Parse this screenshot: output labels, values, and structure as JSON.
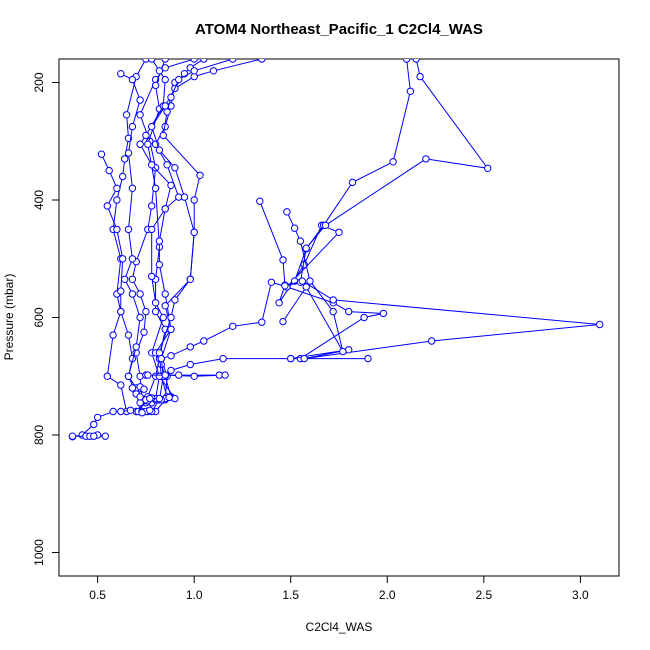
{
  "chart_data": {
    "type": "line",
    "title": "ATOM4 Northeast_Pacific_1 C2Cl4_WAS",
    "xlabel": "C2Cl4_WAS",
    "ylabel": "Pressure (mbar)",
    "xlim": [
      0.3,
      3.2
    ],
    "ylim": [
      1040,
      160
    ],
    "y_reversed": true,
    "xticks": [
      0.5,
      1.0,
      1.5,
      2.0,
      2.5,
      3.0
    ],
    "xtick_labels": [
      "0.5",
      "1.0",
      "1.5",
      "2.0",
      "2.5",
      "3.0"
    ],
    "yticks": [
      200,
      400,
      600,
      800,
      1000
    ],
    "ytick_labels": [
      "200",
      "400",
      "600",
      "800",
      "1000"
    ],
    "grid": false,
    "colors": {
      "series": "#0000ff",
      "axes": "#000000"
    },
    "series": [
      {
        "values": [
          [
            1.0,
            160
          ],
          [
            0.85,
            175
          ],
          [
            0.8,
            195
          ],
          [
            0.72,
            255
          ],
          [
            0.77,
            300
          ],
          [
            0.8,
            345
          ],
          [
            0.78,
            410
          ],
          [
            0.76,
            450
          ],
          [
            0.7,
            505
          ],
          [
            0.68,
            535
          ],
          [
            0.72,
            560
          ],
          [
            0.75,
            590
          ],
          [
            0.74,
            625
          ],
          [
            0.7,
            660
          ],
          [
            0.72,
            700
          ],
          [
            0.73,
            740
          ],
          [
            0.72,
            760
          ]
        ]
      },
      {
        "values": [
          [
            0.75,
            160
          ],
          [
            0.7,
            190
          ],
          [
            0.65,
            255
          ],
          [
            0.66,
            295
          ],
          [
            0.64,
            330
          ],
          [
            0.63,
            360
          ],
          [
            0.6,
            400
          ],
          [
            0.58,
            450
          ],
          [
            0.62,
            500
          ],
          [
            0.6,
            560
          ],
          [
            0.62,
            590
          ],
          [
            0.58,
            630
          ],
          [
            0.55,
            700
          ],
          [
            0.62,
            715
          ],
          [
            0.65,
            760
          ],
          [
            0.58,
            760
          ],
          [
            0.5,
            770
          ],
          [
            0.48,
            782
          ],
          [
            0.42,
            800
          ],
          [
            0.37,
            803
          ]
        ]
      },
      {
        "values": [
          [
            0.85,
            160
          ],
          [
            0.8,
            205
          ],
          [
            0.82,
            245
          ],
          [
            0.76,
            305
          ],
          [
            0.8,
            380
          ],
          [
            0.82,
            480
          ],
          [
            0.8,
            535
          ],
          [
            0.8,
            590
          ],
          [
            0.85,
            620
          ],
          [
            0.82,
            670
          ],
          [
            0.8,
            700
          ],
          [
            0.76,
            735
          ],
          [
            0.75,
            745
          ],
          [
            0.7,
            760
          ]
        ]
      },
      {
        "values": [
          [
            0.78,
            160
          ],
          [
            0.82,
            180
          ],
          [
            0.85,
            195
          ],
          [
            0.84,
            240
          ],
          [
            0.75,
            290
          ],
          [
            0.72,
            305
          ],
          [
            0.78,
            340
          ],
          [
            0.88,
            375
          ],
          [
            0.85,
            415
          ],
          [
            0.82,
            470
          ],
          [
            0.82,
            510
          ],
          [
            0.85,
            560
          ],
          [
            0.88,
            620
          ],
          [
            0.83,
            670
          ],
          [
            0.86,
            700
          ],
          [
            0.85,
            740
          ],
          [
            0.8,
            760
          ]
        ]
      },
      {
        "values": [
          [
            0.52,
            322
          ],
          [
            0.56,
            350
          ],
          [
            0.6,
            380
          ],
          [
            0.55,
            410
          ],
          [
            0.6,
            450
          ],
          [
            0.63,
            500
          ],
          [
            0.62,
            555
          ],
          [
            0.62,
            590
          ],
          [
            0.66,
            630
          ],
          [
            0.68,
            670
          ],
          [
            0.66,
            700
          ],
          [
            0.7,
            730
          ],
          [
            0.74,
            742
          ],
          [
            0.72,
            760
          ]
        ]
      },
      {
        "values": [
          [
            0.62,
            185
          ],
          [
            0.68,
            195
          ],
          [
            0.72,
            230
          ],
          [
            0.68,
            275
          ],
          [
            0.66,
            320
          ],
          [
            0.68,
            380
          ],
          [
            0.66,
            450
          ],
          [
            0.68,
            500
          ],
          [
            0.64,
            535
          ],
          [
            0.68,
            560
          ],
          [
            0.72,
            600
          ],
          [
            0.7,
            650
          ],
          [
            0.66,
            700
          ],
          [
            0.7,
            720
          ],
          [
            0.72,
            760
          ]
        ]
      },
      {
        "values": [
          [
            1.05,
            160
          ],
          [
            0.98,
            175
          ],
          [
            0.95,
            185
          ],
          [
            0.9,
            200
          ],
          [
            0.88,
            240
          ],
          [
            0.85,
            275
          ],
          [
            0.8,
            305
          ],
          [
            0.86,
            340
          ],
          [
            0.92,
            395
          ],
          [
            0.85,
            415
          ],
          [
            0.78,
            450
          ],
          [
            0.78,
            530
          ],
          [
            0.8,
            575
          ],
          [
            0.84,
            600
          ],
          [
            0.78,
            660
          ],
          [
            0.82,
            700
          ],
          [
            0.8,
            738
          ],
          [
            0.76,
            760
          ]
        ]
      },
      {
        "values": [
          [
            1.35,
            160
          ],
          [
            1.1,
            180
          ],
          [
            1.0,
            190
          ],
          [
            0.9,
            210
          ],
          [
            0.85,
            240
          ],
          [
            0.78,
            275
          ],
          [
            0.82,
            315
          ],
          [
            0.9,
            345
          ],
          [
            0.95,
            395
          ],
          [
            1.0,
            455
          ],
          [
            0.98,
            535
          ],
          [
            0.85,
            580
          ],
          [
            0.88,
            620
          ],
          [
            0.8,
            660
          ],
          [
            0.83,
            680
          ],
          [
            0.85,
            700
          ],
          [
            0.88,
            735
          ],
          [
            0.82,
            740
          ],
          [
            0.78,
            745
          ]
        ]
      },
      {
        "values": [
          [
            1.2,
            160
          ],
          [
            1.0,
            180
          ],
          [
            0.92,
            195
          ],
          [
            0.88,
            225
          ],
          [
            0.86,
            250
          ],
          [
            0.84,
            290
          ],
          [
            1.03,
            358
          ],
          [
            1.0,
            400
          ],
          [
            1.0,
            455
          ],
          [
            0.98,
            535
          ],
          [
            0.9,
            570
          ],
          [
            0.88,
            600
          ],
          [
            0.82,
            660
          ],
          [
            0.83,
            700
          ],
          [
            0.86,
            735
          ],
          [
            0.8,
            740
          ]
        ]
      },
      {
        "values": [
          [
            1.34,
            402
          ],
          [
            1.46,
            502
          ],
          [
            1.47,
            545
          ],
          [
            1.44,
            575
          ],
          [
            1.57,
            510
          ],
          [
            1.66,
            443
          ],
          [
            1.75,
            455
          ],
          [
            1.48,
            548
          ],
          [
            1.4,
            540
          ],
          [
            1.35,
            608
          ],
          [
            1.2,
            615
          ],
          [
            1.05,
            640
          ],
          [
            0.98,
            650
          ],
          [
            0.88,
            665
          ],
          [
            0.83,
            670
          ],
          [
            0.84,
            700
          ],
          [
            0.82,
            740
          ],
          [
            0.78,
            760
          ]
        ]
      },
      {
        "values": [
          [
            2.1,
            160
          ],
          [
            2.12,
            215
          ],
          [
            2.03,
            335
          ],
          [
            1.82,
            370
          ],
          [
            1.67,
            443
          ],
          [
            1.58,
            483
          ],
          [
            1.52,
            538
          ],
          [
            1.48,
            548
          ],
          [
            1.72,
            575
          ],
          [
            1.8,
            590
          ],
          [
            1.98,
            593
          ],
          [
            1.88,
            600
          ],
          [
            1.55,
            670
          ],
          [
            1.5,
            670
          ],
          [
            1.9,
            670
          ]
        ]
      },
      {
        "values": [
          [
            2.15,
            160
          ],
          [
            2.17,
            190
          ],
          [
            2.52,
            346
          ],
          [
            2.2,
            330
          ],
          [
            1.68,
            443
          ],
          [
            1.58,
            482
          ],
          [
            1.55,
            540
          ],
          [
            1.47,
            546
          ],
          [
            1.56,
            538
          ],
          [
            1.72,
            570
          ],
          [
            3.1,
            612
          ],
          [
            2.23,
            640
          ],
          [
            1.57,
            670
          ],
          [
            1.8,
            655
          ],
          [
            1.5,
            670
          ],
          [
            1.15,
            670
          ],
          [
            0.98,
            680
          ],
          [
            0.88,
            690
          ],
          [
            0.82,
            700
          ],
          [
            0.9,
            738
          ],
          [
            0.84,
            740
          ]
        ]
      },
      {
        "values": [
          [
            1.48,
            420
          ],
          [
            1.52,
            448
          ],
          [
            1.55,
            470
          ],
          [
            1.6,
            538
          ],
          [
            1.72,
            590
          ],
          [
            1.77,
            658
          ],
          [
            1.58,
            548
          ],
          [
            1.46,
            607
          ]
        ]
      },
      {
        "values": [
          [
            0.75,
            698
          ],
          [
            0.92,
            698
          ],
          [
            1.13,
            698
          ],
          [
            1.16,
            698
          ],
          [
            1.0,
            700
          ],
          [
            0.85,
            698
          ],
          [
            0.76,
            698
          ]
        ]
      },
      {
        "values": [
          [
            0.8,
            738
          ],
          [
            0.85,
            738
          ],
          [
            0.87,
            736
          ],
          [
            0.83,
            740
          ],
          [
            0.78,
            737
          ],
          [
            0.74,
            740
          ],
          [
            0.76,
            742
          ],
          [
            0.72,
            745
          ]
        ]
      },
      {
        "values": [
          [
            0.37,
            802
          ],
          [
            0.44,
            802
          ],
          [
            0.46,
            802
          ],
          [
            0.5,
            800
          ],
          [
            0.54,
            802
          ],
          [
            0.48,
            802
          ]
        ]
      },
      {
        "values": [
          [
            0.62,
            760
          ],
          [
            0.67,
            758
          ],
          [
            0.71,
            760
          ],
          [
            0.73,
            760
          ],
          [
            0.75,
            760
          ],
          [
            0.77,
            758
          ],
          [
            0.73,
            762
          ]
        ]
      },
      {
        "values": [
          [
            0.68,
            720
          ],
          [
            0.72,
            718
          ],
          [
            0.74,
            722
          ],
          [
            0.7,
            730
          ],
          [
            0.72,
            735
          ],
          [
            0.75,
            740
          ],
          [
            0.77,
            738
          ],
          [
            0.82,
            738
          ]
        ]
      }
    ]
  }
}
